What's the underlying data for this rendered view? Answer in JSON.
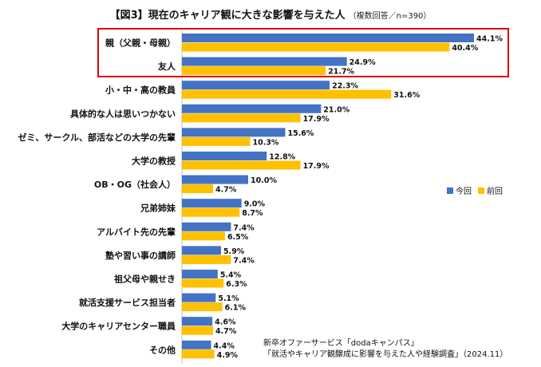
{
  "title": "【図3】現在のキャリア観に大きな影響を与えた人",
  "subtitle": "（複数回答／n=390）",
  "legend": {
    "current": "今回",
    "previous": "前回"
  },
  "colors": {
    "current": "#4472C4",
    "previous": "#FFC000",
    "highlight": "#e00000"
  },
  "source": {
    "line1": "新卒オファーサービス「dodaキャンパス」",
    "line2": "「就活やキャリア観醸成に影響を与えた人や経験調査」（2024.11）"
  },
  "chart_data": {
    "type": "bar",
    "orientation": "horizontal",
    "unit": "%",
    "categories": [
      "親（父親・母親）",
      "友人",
      "小・中・高の教員",
      "具体的な人は思いつかない",
      "ゼミ、サークル、部活などの大学の先輩",
      "大学の教授",
      "OB・OG（社会人）",
      "兄弟姉妹",
      "アルバイト先の先輩",
      "塾や習い事の講師",
      "祖父母や親せき",
      "就活支援サービス担当者",
      "大学のキャリアセンター職員",
      "その他"
    ],
    "series": [
      {
        "name": "今回",
        "values": [
          44.1,
          24.9,
          22.3,
          21.0,
          15.6,
          12.8,
          10.0,
          9.0,
          7.4,
          5.9,
          5.4,
          5.1,
          4.6,
          4.4
        ]
      },
      {
        "name": "前回",
        "values": [
          40.4,
          21.7,
          31.6,
          17.9,
          10.3,
          17.9,
          4.7,
          8.7,
          6.5,
          7.4,
          6.3,
          6.1,
          4.7,
          4.9
        ]
      }
    ],
    "highlighted_categories": [
      "親（父親・母親）",
      "友人"
    ],
    "legend_position": "right"
  }
}
